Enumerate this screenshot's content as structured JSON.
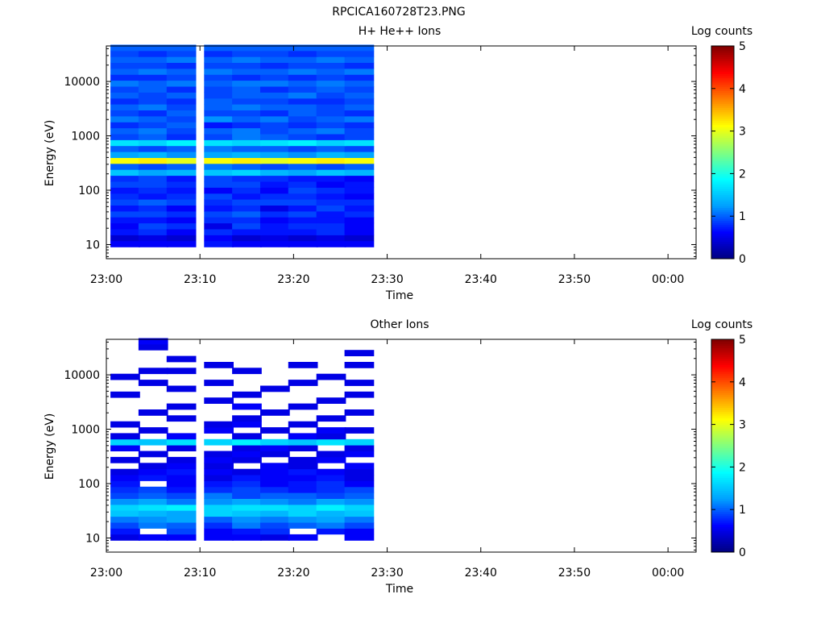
{
  "title": "RPCICA160728T23.PNG",
  "colorbar": {
    "label": "Log counts",
    "ticks": [
      "0",
      "1",
      "2",
      "3",
      "4",
      "5"
    ],
    "stops": [
      "#00007f",
      "#0000ff",
      "#00a0ff",
      "#00ffff",
      "#80ff80",
      "#ffff00",
      "#ff8000",
      "#ff0000",
      "#800000"
    ]
  },
  "chart_data": [
    {
      "type": "heatmap",
      "title": "H+ He++ Ions",
      "xlabel": "Time",
      "ylabel": "Energy (eV)",
      "x_ticks": [
        "23:00",
        "23:10",
        "23:20",
        "23:30",
        "23:40",
        "23:50",
        "00:00"
      ],
      "y_ticks": [
        "10",
        "100",
        "1000",
        "10000"
      ],
      "yscale": "log",
      "ylim": [
        5.5,
        45000
      ],
      "xlim_minutes": [
        0,
        63
      ],
      "zlabel": "Log counts",
      "zlim": [
        0,
        5
      ],
      "time_bins": [
        "23:02",
        "23:05",
        "23:08",
        "23:12",
        "23:15",
        "23:18",
        "23:21",
        "23:24",
        "23:27"
      ],
      "energy_bins_eV": [
        10.3,
        13.3,
        17.1,
        22,
        28.3,
        36.4,
        46.8,
        60.2,
        77.4,
        99.6,
        128,
        165,
        212,
        273,
        351,
        451,
        580,
        746,
        960,
        1234,
        1587,
        2041,
        2625,
        3376,
        4342,
        5584,
        7182,
        9236,
        11878,
        15276,
        19646,
        25266,
        32494,
        41789
      ],
      "log_counts": [
        [
          0.6,
          0.6,
          0.6,
          0.7,
          0.6,
          0.6,
          0.6,
          0.6,
          0.6
        ],
        [
          0.4,
          0.5,
          0.4,
          0.6,
          0.4,
          0.5,
          0.4,
          0.5,
          0.4
        ],
        [
          0.7,
          0.8,
          0.6,
          0.8,
          0.7,
          0.7,
          0.7,
          0.8,
          0.6
        ],
        [
          0.6,
          0.9,
          0.8,
          0.5,
          0.9,
          0.7,
          0.8,
          0.8,
          0.6
        ],
        [
          0.7,
          0.7,
          0.6,
          0.8,
          0.8,
          0.6,
          0.7,
          0.7,
          0.6
        ],
        [
          0.9,
          0.9,
          0.8,
          0.9,
          1.0,
          0.8,
          0.9,
          0.7,
          0.8
        ],
        [
          0.7,
          0.8,
          0.6,
          0.7,
          0.8,
          0.5,
          0.7,
          0.9,
          0.7
        ],
        [
          0.9,
          1.0,
          0.9,
          0.8,
          0.9,
          0.9,
          0.9,
          0.8,
          0.8
        ],
        [
          0.8,
          0.7,
          0.8,
          0.9,
          0.7,
          0.8,
          0.8,
          0.7,
          0.6
        ],
        [
          0.7,
          0.8,
          0.7,
          0.6,
          0.8,
          0.6,
          0.9,
          0.8,
          0.7
        ],
        [
          0.9,
          0.9,
          0.8,
          0.9,
          0.9,
          0.7,
          0.8,
          0.6,
          0.7
        ],
        [
          0.8,
          0.9,
          0.7,
          0.9,
          0.8,
          0.8,
          0.7,
          0.7,
          0.6
        ],
        [
          1.5,
          1.3,
          1.4,
          1.5,
          1.6,
          1.4,
          1.3,
          1.5,
          1.4
        ],
        [
          1.0,
          0.9,
          1.0,
          1.1,
          1.0,
          0.9,
          1.0,
          0.9,
          1.0
        ],
        [
          3.1,
          3.2,
          3.0,
          3.1,
          3.2,
          3.0,
          3.1,
          3.2,
          3.1
        ],
        [
          1.3,
          1.4,
          1.2,
          1.3,
          1.4,
          1.3,
          1.2,
          1.4,
          1.3
        ],
        [
          1.0,
          0.9,
          1.0,
          1.1,
          1.0,
          1.0,
          0.9,
          1.0,
          0.9
        ],
        [
          1.7,
          1.6,
          1.8,
          1.7,
          1.6,
          1.7,
          1.8,
          1.6,
          1.7
        ],
        [
          0.9,
          1.0,
          0.8,
          0.9,
          1.1,
          1.0,
          0.9,
          0.8,
          0.9
        ],
        [
          1.0,
          1.1,
          0.9,
          1.0,
          1.1,
          0.9,
          1.0,
          1.1,
          0.9
        ],
        [
          0.8,
          0.9,
          1.0,
          0.7,
          0.8,
          0.9,
          0.8,
          0.9,
          0.8
        ],
        [
          1.1,
          1.0,
          0.9,
          1.2,
          1.0,
          1.1,
          0.9,
          1.0,
          1.1
        ],
        [
          0.9,
          0.8,
          1.0,
          0.9,
          0.9,
          0.8,
          1.0,
          0.9,
          0.8
        ],
        [
          1.0,
          1.1,
          0.9,
          1.0,
          1.1,
          1.0,
          1.0,
          0.9,
          1.0
        ],
        [
          0.8,
          0.9,
          0.8,
          1.0,
          0.9,
          0.9,
          0.8,
          0.8,
          0.9
        ],
        [
          1.0,
          0.9,
          1.0,
          0.9,
          1.0,
          1.0,
          1.1,
          0.9,
          1.0
        ],
        [
          0.9,
          1.0,
          0.8,
          0.9,
          1.0,
          0.8,
          0.9,
          1.0,
          0.9
        ],
        [
          1.1,
          1.0,
          1.1,
          1.0,
          1.1,
          1.1,
          1.0,
          1.1,
          1.0
        ],
        [
          0.8,
          0.8,
          0.9,
          0.9,
          0.8,
          0.9,
          0.8,
          0.9,
          0.8
        ],
        [
          1.0,
          1.1,
          1.0,
          1.1,
          1.0,
          1.0,
          1.1,
          1.0,
          1.1
        ],
        [
          0.9,
          0.9,
          0.8,
          0.9,
          0.9,
          0.8,
          0.9,
          0.9,
          0.8
        ],
        [
          1.0,
          1.0,
          1.1,
          1.0,
          1.1,
          1.0,
          1.0,
          1.1,
          1.0
        ],
        [
          0.9,
          0.8,
          0.9,
          0.8,
          0.9,
          0.9,
          0.8,
          0.9,
          0.9
        ],
        [
          1.0,
          1.0,
          1.0,
          1.0,
          1.0,
          1.0,
          1.0,
          1.0,
          1.0
        ]
      ]
    },
    {
      "type": "heatmap",
      "title": "Other Ions",
      "xlabel": "Time",
      "ylabel": "Energy (eV)",
      "x_ticks": [
        "23:00",
        "23:10",
        "23:20",
        "23:30",
        "23:40",
        "23:50",
        "00:00"
      ],
      "y_ticks": [
        "10",
        "100",
        "1000",
        "10000"
      ],
      "yscale": "log",
      "ylim": [
        5.5,
        45000
      ],
      "xlim_minutes": [
        0,
        63
      ],
      "zlabel": "Log counts",
      "zlim": [
        0,
        5
      ],
      "time_bins": [
        "23:02",
        "23:05",
        "23:08",
        "23:12",
        "23:15",
        "23:18",
        "23:21",
        "23:24",
        "23:27"
      ],
      "energy_bins_eV": [
        10.3,
        13.3,
        17.1,
        22,
        28.3,
        36.4,
        46.8,
        60.2,
        77.4,
        99.6,
        128,
        165,
        212,
        273,
        351,
        451,
        580,
        746,
        960,
        1234,
        1587,
        2041,
        2625,
        3376,
        4342,
        5584,
        7182,
        9236,
        11878,
        15276,
        19646,
        25266,
        32494,
        41789
      ],
      "log_counts": [
        [
          0.5,
          0.6,
          0.6,
          0.6,
          0.6,
          0.5,
          0.6,
          null,
          0.6
        ],
        [
          0.7,
          null,
          0.9,
          0.6,
          0.7,
          0.8,
          null,
          0.7,
          0.6
        ],
        [
          0.9,
          1.1,
          1.0,
          0.8,
          1.1,
          0.9,
          1.0,
          1.1,
          0.9
        ],
        [
          1.1,
          1.2,
          1.3,
          1.0,
          1.2,
          1.1,
          1.2,
          1.3,
          1.1
        ],
        [
          1.5,
          1.4,
          1.3,
          1.6,
          1.5,
          1.4,
          1.6,
          1.4,
          1.5
        ],
        [
          1.6,
          1.7,
          1.8,
          1.6,
          1.7,
          1.7,
          1.6,
          1.8,
          1.6
        ],
        [
          1.2,
          1.3,
          1.1,
          1.2,
          1.3,
          1.2,
          1.1,
          1.3,
          1.2
        ],
        [
          0.9,
          1.0,
          0.9,
          1.1,
          0.9,
          1.0,
          1.0,
          0.9,
          1.0
        ],
        [
          0.8,
          0.9,
          0.7,
          0.8,
          0.9,
          0.8,
          0.7,
          0.8,
          0.9
        ],
        [
          0.7,
          null,
          0.6,
          0.7,
          0.8,
          0.6,
          0.7,
          0.8,
          0.6
        ],
        [
          0.6,
          0.7,
          0.6,
          0.5,
          0.7,
          0.6,
          0.6,
          0.7,
          0.5
        ],
        [
          0.5,
          0.6,
          0.7,
          0.6,
          0.5,
          0.6,
          0.7,
          0.6,
          0.5
        ],
        [
          null,
          0.5,
          0.6,
          0.5,
          null,
          0.6,
          0.5,
          null,
          0.6
        ],
        [
          0.5,
          null,
          0.5,
          0.6,
          0.5,
          null,
          0.5,
          0.6,
          null
        ],
        [
          null,
          0.5,
          null,
          0.5,
          0.6,
          0.5,
          null,
          0.5,
          0.6
        ],
        [
          0.6,
          null,
          0.5,
          null,
          0.5,
          0.6,
          0.5,
          null,
          0.5
        ],
        [
          1.6,
          1.5,
          1.7,
          1.6,
          1.8,
          1.6,
          1.5,
          1.7,
          1.6
        ],
        [
          0.5,
          null,
          0.6,
          null,
          0.5,
          null,
          0.6,
          0.5,
          null
        ],
        [
          null,
          0.5,
          null,
          0.6,
          null,
          0.5,
          null,
          0.6,
          0.5
        ],
        [
          0.5,
          null,
          null,
          0.5,
          0.6,
          null,
          0.5,
          null,
          null
        ],
        [
          null,
          null,
          0.5,
          null,
          0.5,
          null,
          null,
          0.5,
          null
        ],
        [
          null,
          0.5,
          null,
          null,
          null,
          0.5,
          null,
          null,
          0.5
        ],
        [
          null,
          null,
          0.5,
          null,
          0.6,
          null,
          0.5,
          null,
          null
        ],
        [
          null,
          null,
          null,
          0.5,
          null,
          null,
          null,
          0.5,
          null
        ],
        [
          0.5,
          null,
          null,
          null,
          0.5,
          null,
          null,
          null,
          0.5
        ],
        [
          null,
          null,
          0.5,
          null,
          null,
          0.5,
          null,
          null,
          null
        ],
        [
          null,
          0.5,
          null,
          0.5,
          null,
          null,
          0.5,
          null,
          0.5
        ],
        [
          0.5,
          null,
          null,
          null,
          null,
          null,
          null,
          0.5,
          null
        ],
        [
          null,
          0.5,
          0.5,
          null,
          0.5,
          null,
          null,
          null,
          null
        ],
        [
          null,
          null,
          null,
          0.5,
          null,
          null,
          0.5,
          null,
          0.5
        ],
        [
          null,
          null,
          0.5,
          null,
          null,
          null,
          null,
          null,
          null
        ],
        [
          null,
          null,
          null,
          null,
          null,
          null,
          null,
          null,
          0.5
        ],
        [
          null,
          0.5,
          null,
          null,
          null,
          null,
          null,
          null,
          null
        ],
        [
          null,
          0.6,
          null,
          null,
          null,
          null,
          null,
          null,
          null
        ]
      ]
    }
  ]
}
